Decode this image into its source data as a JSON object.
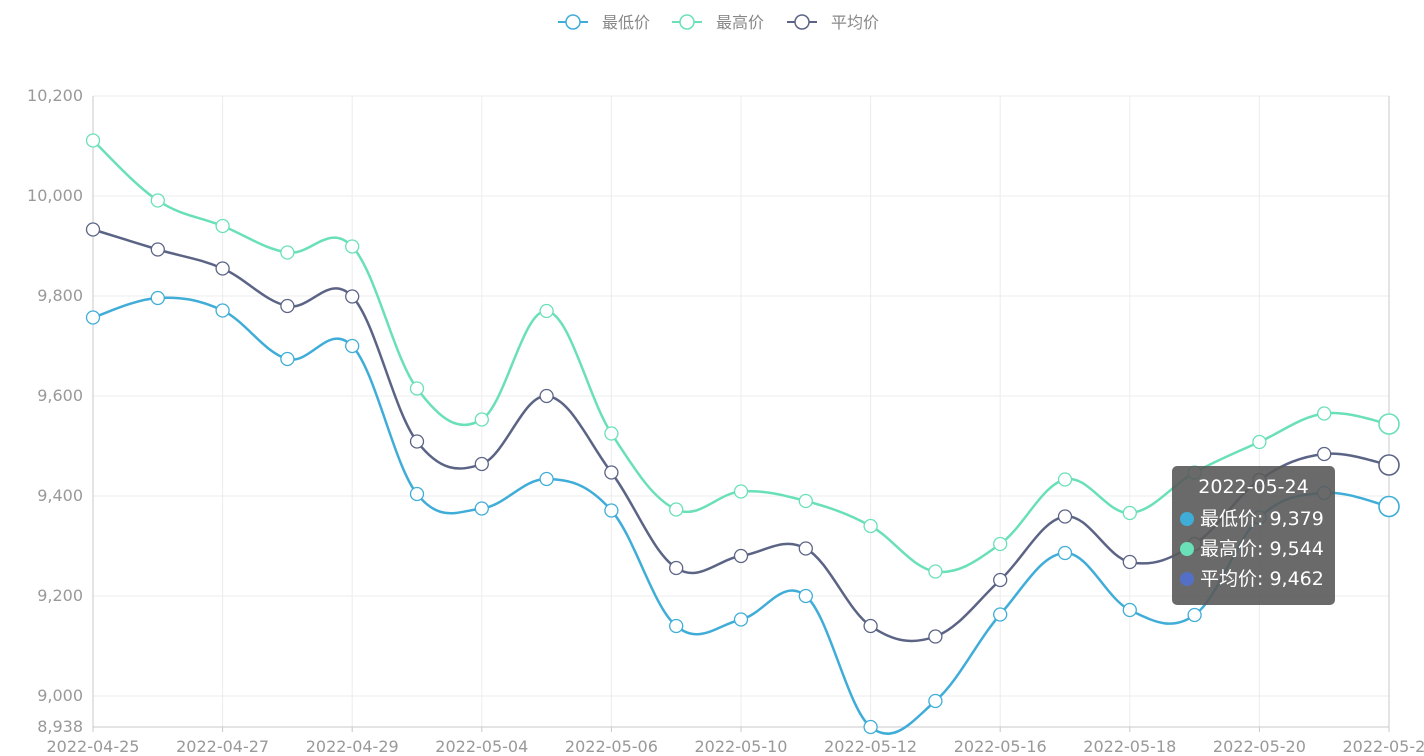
{
  "chart_data": {
    "type": "line",
    "smooth": true,
    "x": [
      "2022-04-25",
      "2022-04-26",
      "2022-04-27",
      "2022-04-28",
      "2022-04-29",
      "2022-05-03",
      "2022-05-04",
      "2022-05-05",
      "2022-05-06",
      "2022-05-09",
      "2022-05-10",
      "2022-05-11",
      "2022-05-12",
      "2022-05-13",
      "2022-05-16",
      "2022-05-17",
      "2022-05-18",
      "2022-05-19",
      "2022-05-20",
      "2022-05-23",
      "2022-05-24"
    ],
    "x_tick_labels": [
      "2022-04-25",
      "2022-04-27",
      "2022-04-29",
      "2022-05-04",
      "2022-05-06",
      "2022-05-10",
      "2022-05-12",
      "2022-05-16",
      "2022-05-18",
      "2022-05-20",
      "2022-05-24"
    ],
    "y_tick_labels": [
      "10,200",
      "10,000",
      "9,800",
      "9,600",
      "9,400",
      "9,200",
      "9,000",
      "8,938"
    ],
    "ylim": [
      8938,
      10200
    ],
    "grid": true,
    "legend_position": "top-center",
    "series": [
      {
        "name": "最低价",
        "color": "#3fadd8",
        "values": [
          9757,
          9796,
          9771,
          9674,
          9700,
          9404,
          9375,
          9434,
          9371,
          9140,
          9153,
          9200,
          8938,
          8990,
          9163,
          9286,
          9172,
          9162,
          9357,
          9406,
          9379
        ]
      },
      {
        "name": "最高价",
        "color": "#6ae0b8",
        "values": [
          10111,
          9991,
          9940,
          9887,
          9899,
          9615,
          9553,
          9770,
          9525,
          9373,
          9409,
          9390,
          9340,
          9249,
          9304,
          9433,
          9366,
          9447,
          9508,
          9565,
          9544
        ]
      },
      {
        "name": "平均价",
        "color": "#5c6486",
        "values": [
          9933,
          9893,
          9855,
          9780,
          9799,
          9509,
          9464,
          9600,
          9447,
          9256,
          9280,
          9295,
          9140,
          9119,
          9232,
          9359,
          9268,
          9304,
          9432,
          9484,
          9462
        ]
      }
    ]
  },
  "tooltip": {
    "title": "2022-05-24",
    "rows": [
      {
        "label": "最低价: 9,379",
        "color": "#3fadd8"
      },
      {
        "label": "最高价: 9,544",
        "color": "#6ae0b8"
      },
      {
        "label": "平均价: 9,462",
        "color": "#5470c6"
      }
    ]
  }
}
